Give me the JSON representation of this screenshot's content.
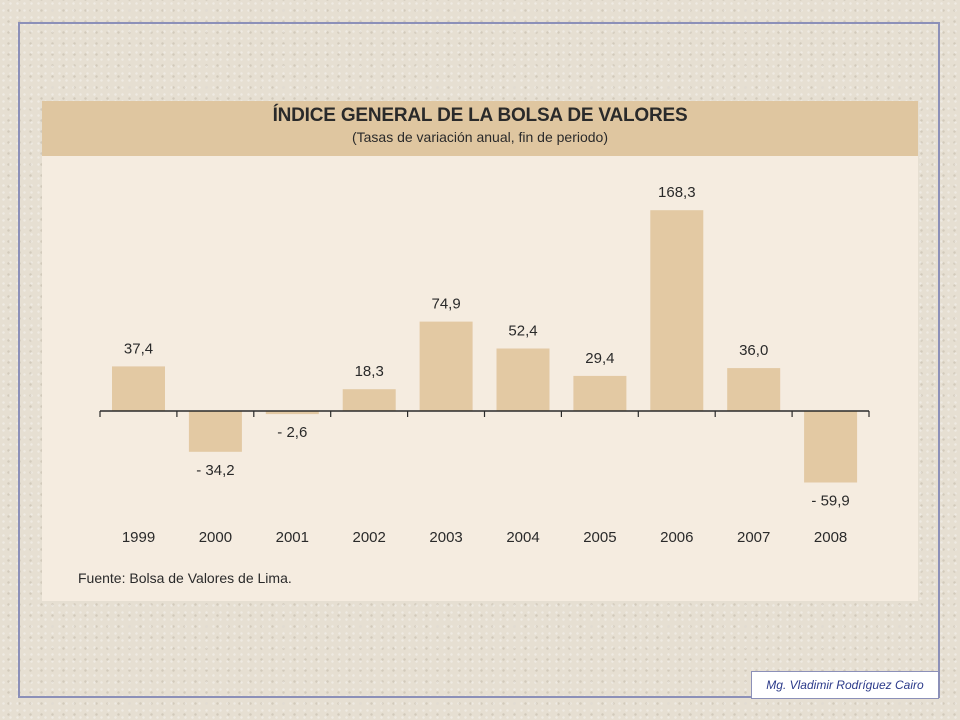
{
  "chart_data": {
    "type": "bar",
    "title": "ÍNDICE GENERAL DE LA BOLSA DE VALORES",
    "subtitle": "(Tasas de variación anual, fin de periodo)",
    "categories": [
      "1999",
      "2000",
      "2001",
      "2002",
      "2003",
      "2004",
      "2005",
      "2006",
      "2007",
      "2008"
    ],
    "values": [
      37.4,
      -34.2,
      -2.6,
      18.3,
      74.9,
      52.4,
      29.4,
      168.3,
      36.0,
      -59.9
    ],
    "data_labels": [
      "37,4",
      "- 34,2",
      "- 2,6",
      "18,3",
      "74,9",
      "52,4",
      "29,4",
      "168,3",
      "36,0",
      "- 59,9"
    ],
    "xlabel": "",
    "ylabel": "",
    "grid": false,
    "legend": "none",
    "bar_color": "#e3c9a3",
    "source": "Fuente: Bolsa de Valores de Lima."
  },
  "footer": {
    "credit": "Mg. Vladimir Rodríguez Cairo"
  },
  "colors": {
    "background": "#e6dfd2",
    "panel": "#f5ece0",
    "header": "#dfc6a0",
    "frame_border": "#8c90b8",
    "credit_text": "#2b3a8a",
    "axis": "#2a2a2a"
  }
}
